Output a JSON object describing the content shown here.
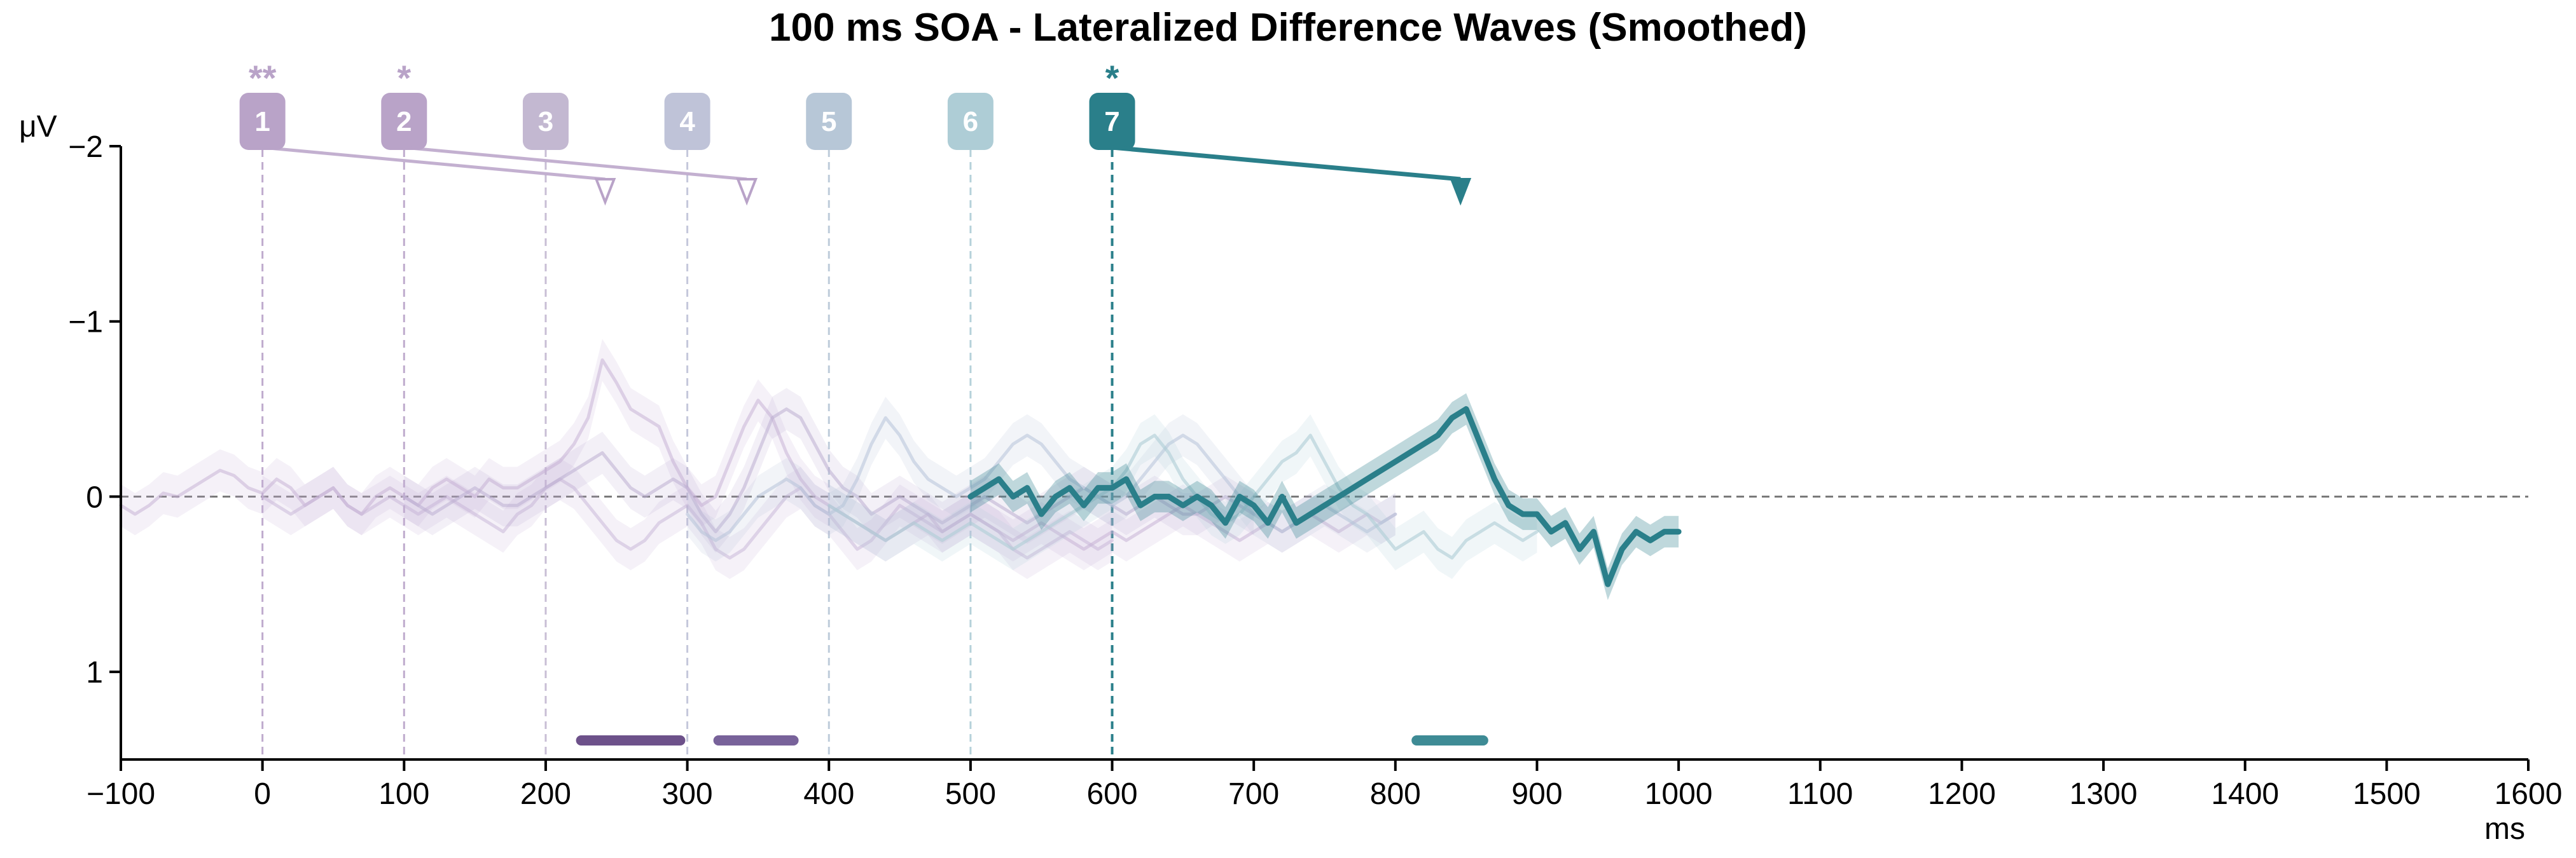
{
  "chart_data": {
    "type": "line",
    "title": "100 ms SOA - Lateralized Difference Waves (Smoothed)",
    "xlabel": "ms",
    "ylabel": "μV",
    "xlim": [
      -100,
      1600
    ],
    "ylim": [
      -2,
      1.5
    ],
    "y_inverted": true,
    "x_ticks": [
      -100,
      0,
      100,
      200,
      300,
      400,
      500,
      600,
      700,
      800,
      900,
      1000,
      1100,
      1200,
      1300,
      1400,
      1500,
      1600
    ],
    "x_tick_labels": [
      "−100",
      "0",
      "100",
      "200",
      "300",
      "400",
      "500",
      "600",
      "700",
      "800",
      "900",
      "1000",
      "1100",
      "1200",
      "1300",
      "1400",
      "1500",
      "1600"
    ],
    "y_ticks": [
      -2,
      -1,
      0,
      1
    ],
    "y_tick_labels": [
      "−2",
      "−1",
      "0",
      "1"
    ],
    "zero_line": true,
    "markers": [
      {
        "label": "1",
        "onset": 0,
        "stars": "**",
        "color": "#b9a3c8",
        "arrow_to": 242
      },
      {
        "label": "2",
        "onset": 100,
        "stars": "*",
        "color": "#b9a3c8",
        "arrow_to": 342
      },
      {
        "label": "3",
        "onset": 200,
        "stars": "",
        "color": "#c3b8d1"
      },
      {
        "label": "4",
        "onset": 300,
        "stars": "",
        "color": "#bfc3d8"
      },
      {
        "label": "5",
        "onset": 400,
        "stars": "",
        "color": "#b7c7d7"
      },
      {
        "label": "6",
        "onset": 500,
        "stars": "",
        "color": "#aecdd6"
      },
      {
        "label": "7",
        "onset": 600,
        "stars": "*",
        "color": "#2a7f8a",
        "arrow_to": 846
      }
    ],
    "series": [
      {
        "color": "#c6b3d6",
        "opacity": 0.55,
        "width": 5,
        "x": [
          -100,
          -90,
          -80,
          -70,
          -60,
          -50,
          -40,
          -30,
          -20,
          -10,
          0,
          10,
          20,
          30,
          40,
          50,
          60,
          70,
          80,
          90,
          100,
          110,
          120,
          130,
          140,
          150,
          160,
          170,
          180,
          190,
          200,
          210,
          220,
          230,
          240,
          250,
          260,
          270,
          280,
          290,
          300,
          310,
          320,
          330,
          340,
          350,
          360,
          370,
          380,
          390,
          400,
          410,
          420,
          430,
          440,
          450,
          460,
          470,
          480,
          490,
          500,
          510,
          520,
          530,
          540,
          550,
          560,
          570,
          580,
          590,
          600,
          610,
          620,
          630,
          640,
          650,
          660,
          670,
          680,
          690,
          700,
          710,
          720,
          730,
          740,
          750,
          760,
          770,
          780,
          790,
          800
        ],
        "values": [
          0.05,
          0.1,
          0.05,
          -0.02,
          0,
          -0.05,
          -0.1,
          -0.15,
          -0.12,
          -0.05,
          -0.02,
          -0.1,
          -0.05,
          0.05,
          0.0,
          -0.05,
          0.05,
          0.1,
          0.0,
          -0.05,
          0.0,
          0.05,
          -0.05,
          -0.1,
          -0.05,
          0.0,
          -0.1,
          -0.05,
          -0.05,
          -0.1,
          -0.15,
          -0.2,
          -0.3,
          -0.45,
          -0.78,
          -0.65,
          -0.5,
          -0.45,
          -0.4,
          -0.2,
          -0.05,
          0.05,
          0.0,
          -0.2,
          -0.4,
          -0.55,
          -0.45,
          -0.25,
          -0.1,
          0.0,
          0.05,
          0.1,
          0.15,
          0.2,
          0.25,
          0.2,
          0.15,
          0.1,
          0.2,
          0.15,
          0.1,
          0.15,
          0.2,
          0.25,
          0.2,
          0.15,
          0.2,
          0.25,
          0.3,
          0.25,
          0.2,
          0.25,
          0.2,
          0.15,
          0.1,
          0.05,
          0.1,
          0.15,
          0.2,
          0.25,
          0.2,
          0.15,
          0.2,
          0.15,
          0.1,
          0.15,
          0.2,
          0.15,
          0.1,
          0.15,
          0.1
        ]
      },
      {
        "color": "#c6b3d6",
        "opacity": 0.5,
        "width": 5,
        "x": [
          0,
          10,
          20,
          30,
          40,
          50,
          60,
          70,
          80,
          90,
          100,
          110,
          120,
          130,
          140,
          150,
          160,
          170,
          180,
          190,
          200,
          210,
          220,
          230,
          240,
          250,
          260,
          270,
          280,
          290,
          300,
          310,
          320,
          330,
          340,
          350,
          360,
          370,
          380,
          390,
          400,
          410,
          420,
          430,
          440,
          450,
          460,
          470,
          480,
          490,
          500,
          510,
          520,
          530,
          540,
          550,
          560,
          570,
          580,
          590,
          600
        ],
        "values": [
          0.0,
          0.05,
          0.1,
          0.05,
          0.0,
          -0.05,
          0.05,
          0.1,
          0.05,
          0.0,
          0.05,
          0.1,
          0.05,
          0.0,
          0.05,
          0.1,
          0.15,
          0.2,
          0.1,
          0.05,
          -0.05,
          -0.1,
          -0.05,
          0.05,
          0.15,
          0.25,
          0.3,
          0.25,
          0.15,
          0.1,
          0.05,
          0.15,
          0.3,
          0.35,
          0.3,
          0.2,
          0.1,
          0.0,
          -0.05,
          0.05,
          0.1,
          0.2,
          0.3,
          0.25,
          0.15,
          0.05,
          0.1,
          0.15,
          0.2,
          0.15,
          0.1,
          0.15,
          0.2,
          0.3,
          0.35,
          0.3,
          0.25,
          0.2,
          0.25,
          0.3,
          0.25
        ]
      },
      {
        "color": "#bcaed2",
        "opacity": 0.55,
        "width": 5,
        "x": [
          100,
          110,
          120,
          130,
          140,
          150,
          160,
          170,
          180,
          190,
          200,
          210,
          220,
          230,
          240,
          250,
          260,
          270,
          280,
          290,
          300,
          310,
          320,
          330,
          340,
          350,
          360,
          370,
          380,
          390,
          400,
          410,
          420,
          430,
          440,
          450,
          460,
          470,
          480,
          490,
          500,
          510,
          520,
          530,
          540,
          550,
          560,
          570,
          580,
          590,
          600,
          610,
          620,
          630,
          640,
          650,
          660,
          670,
          680,
          690,
          700
        ],
        "values": [
          0.0,
          0.05,
          0.1,
          0.05,
          0.0,
          -0.05,
          0.0,
          0.05,
          0.05,
          0.0,
          -0.05,
          -0.1,
          -0.15,
          -0.2,
          -0.25,
          -0.15,
          -0.05,
          0.0,
          -0.05,
          -0.1,
          -0.05,
          0.1,
          0.2,
          0.1,
          -0.05,
          -0.25,
          -0.45,
          -0.5,
          -0.45,
          -0.3,
          -0.15,
          -0.05,
          0.0,
          0.1,
          0.05,
          0.0,
          0.05,
          0.1,
          0.15,
          0.1,
          0.05,
          0.0,
          0.05,
          0.1,
          0.15,
          0.1,
          0.05,
          0.0,
          -0.05,
          0.0,
          0.05,
          0.1,
          0.05,
          0.0,
          0.05,
          0.1,
          0.1,
          0.05,
          0.0,
          0.05,
          0.1
        ]
      },
      {
        "color": "#b7c2d8",
        "opacity": 0.55,
        "width": 5,
        "x": [
          300,
          310,
          320,
          330,
          340,
          350,
          360,
          370,
          380,
          390,
          400,
          410,
          420,
          430,
          440,
          450,
          460,
          470,
          480,
          490,
          500,
          510,
          520,
          530,
          540,
          550,
          560,
          570,
          580,
          590,
          600,
          610,
          620,
          630,
          640,
          650,
          660,
          670,
          680,
          690,
          700,
          710,
          720,
          730,
          740,
          750,
          760,
          770,
          780,
          790,
          800
        ],
        "values": [
          0.1,
          0.2,
          0.25,
          0.2,
          0.1,
          0.0,
          -0.05,
          -0.1,
          -0.05,
          0.05,
          0.1,
          0.05,
          -0.1,
          -0.3,
          -0.45,
          -0.35,
          -0.2,
          -0.1,
          -0.05,
          0.0,
          -0.05,
          -0.1,
          -0.2,
          -0.3,
          -0.35,
          -0.3,
          -0.2,
          -0.1,
          -0.05,
          0.0,
          0.05,
          0.0,
          -0.1,
          -0.2,
          -0.3,
          -0.35,
          -0.3,
          -0.2,
          -0.1,
          0.0,
          0.1,
          0.15,
          0.2,
          0.15,
          0.1,
          0.05,
          0.1,
          0.15,
          0.2,
          0.15,
          0.1
        ]
      },
      {
        "color": "#aecdd6",
        "opacity": 0.6,
        "width": 5,
        "x": [
          400,
          410,
          420,
          430,
          440,
          450,
          460,
          470,
          480,
          490,
          500,
          510,
          520,
          530,
          540,
          550,
          560,
          570,
          580,
          590,
          600,
          610,
          620,
          630,
          640,
          650,
          660,
          670,
          680,
          690,
          700,
          710,
          720,
          730,
          740,
          750,
          760,
          770,
          780,
          790,
          800,
          810,
          820,
          830,
          840,
          850,
          860,
          870,
          880,
          890,
          900
        ],
        "values": [
          0.05,
          0.1,
          0.15,
          0.2,
          0.25,
          0.2,
          0.15,
          0.2,
          0.25,
          0.2,
          0.15,
          0.2,
          0.25,
          0.3,
          0.25,
          0.2,
          0.15,
          0.1,
          0.05,
          0.0,
          -0.05,
          -0.15,
          -0.3,
          -0.35,
          -0.25,
          -0.1,
          0.0,
          0.1,
          0.15,
          0.1,
          0.0,
          -0.1,
          -0.2,
          -0.25,
          -0.35,
          -0.2,
          -0.05,
          0.05,
          0.1,
          0.2,
          0.3,
          0.25,
          0.2,
          0.3,
          0.35,
          0.25,
          0.2,
          0.15,
          0.2,
          0.25,
          0.2
        ]
      },
      {
        "color": "#2a7f8a",
        "opacity": 1.0,
        "width": 9,
        "highlight": true,
        "x": [
          500,
          510,
          520,
          530,
          540,
          550,
          560,
          570,
          580,
          590,
          600,
          610,
          620,
          630,
          640,
          650,
          660,
          670,
          680,
          690,
          700,
          710,
          720,
          730,
          740,
          750,
          760,
          770,
          780,
          790,
          800,
          810,
          820,
          830,
          840,
          850,
          860,
          870,
          880,
          890,
          900,
          910,
          920,
          930,
          940,
          950,
          960,
          970,
          980,
          990,
          1000
        ],
        "values": [
          0.0,
          -0.05,
          -0.1,
          0.0,
          -0.05,
          0.1,
          0.0,
          -0.05,
          0.05,
          -0.05,
          -0.05,
          -0.1,
          0.05,
          0.0,
          0.0,
          0.05,
          0.0,
          0.05,
          0.15,
          0.0,
          0.05,
          0.15,
          0.0,
          0.15,
          0.1,
          0.05,
          0.0,
          -0.05,
          -0.1,
          -0.15,
          -0.2,
          -0.25,
          -0.3,
          -0.35,
          -0.45,
          -0.5,
          -0.3,
          -0.1,
          0.05,
          0.1,
          0.1,
          0.2,
          0.15,
          0.3,
          0.2,
          0.5,
          0.3,
          0.2,
          0.25,
          0.2,
          0.2
        ]
      }
    ],
    "significance_bars": [
      {
        "start": 225,
        "end": 295,
        "color": "#5e3f7e"
      },
      {
        "start": 322,
        "end": 375,
        "color": "#6a5290"
      },
      {
        "start": 815,
        "end": 862,
        "color": "#2a7f8a"
      }
    ]
  }
}
